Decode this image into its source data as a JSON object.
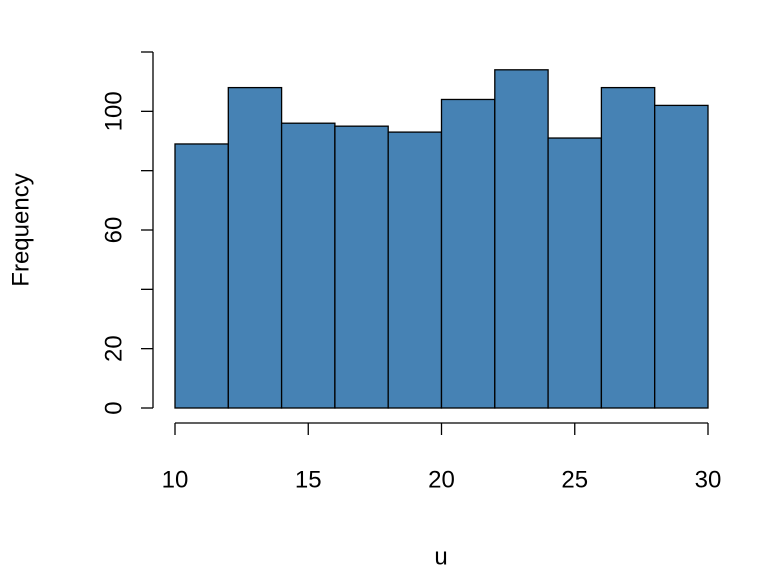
{
  "chart_data": {
    "type": "histogram",
    "x_label": "u",
    "y_label": "Frequency",
    "bins": [
      10,
      12,
      14,
      16,
      18,
      20,
      22,
      24,
      26,
      28,
      30
    ],
    "values": [
      89,
      108,
      96,
      95,
      93,
      104,
      114,
      91,
      108,
      102
    ],
    "color": "#4682b4",
    "xlim": [
      10,
      30
    ],
    "xticks": [
      10,
      15,
      20,
      25,
      30
    ],
    "ylim": [
      0,
      120
    ],
    "yticks": [
      0,
      20,
      {
        "value": 40,
        "label": null
      },
      60,
      {
        "value": 80,
        "label": null
      },
      100,
      {
        "value": 120,
        "label": null
      }
    ]
  }
}
